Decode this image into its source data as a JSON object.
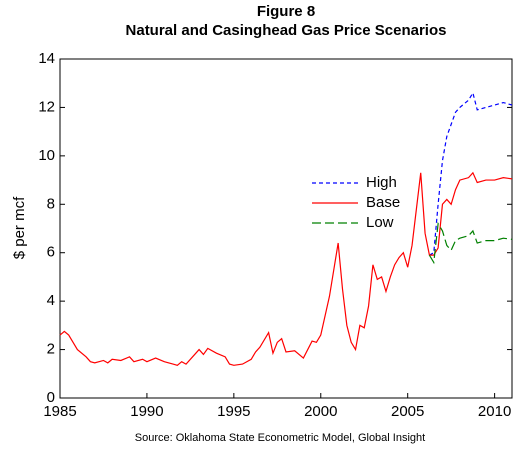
{
  "chart_data": {
    "type": "line",
    "title": "Figure 8",
    "subtitle": "Natural and Casinghead Gas Price Scenarios",
    "y_label": "$ per mcf",
    "note": "Source:  Oklahoma State Econometric Model, Global Insight",
    "x": [
      1985,
      1985.25,
      1985.5,
      1985.75,
      1986,
      1986.5,
      1986.75,
      1987,
      1987.5,
      1987.75,
      1988,
      1988.5,
      1989,
      1989.25,
      1989.75,
      1990,
      1990.5,
      1991,
      1991.5,
      1991.75,
      1992,
      1992.25,
      1992.75,
      1993,
      1993.25,
      1993.5,
      1994,
      1994.5,
      1994.75,
      1995,
      1995.5,
      1996,
      1996.25,
      1996.5,
      1997,
      1997.25,
      1997.5,
      1997.75,
      1998,
      1998.5,
      1999,
      1999.5,
      1999.75,
      2000,
      2000.5,
      2001,
      2001.25,
      2001.5,
      2001.75,
      2002,
      2002.25,
      2002.5,
      2002.75,
      2003,
      2003.25,
      2003.5,
      2003.75,
      2004,
      2004.25,
      2004.5,
      2004.75,
      2005,
      2005.25,
      2005.5,
      2005.75,
      2006,
      2006.25,
      2006.5,
      2006.75,
      2007,
      2007.25,
      2007.5,
      2007.75,
      2008,
      2008.5,
      2008.75,
      2009,
      2009.5,
      2010,
      2010.5,
      2011
    ],
    "series": [
      {
        "name": "High",
        "color": "#0000ff",
        "dash": "4 3",
        "values": [
          null,
          null,
          null,
          null,
          null,
          null,
          null,
          null,
          null,
          null,
          null,
          null,
          null,
          null,
          null,
          null,
          null,
          null,
          null,
          null,
          null,
          null,
          null,
          null,
          null,
          null,
          null,
          null,
          null,
          null,
          null,
          null,
          null,
          null,
          null,
          null,
          null,
          null,
          null,
          null,
          null,
          null,
          null,
          null,
          null,
          null,
          null,
          null,
          null,
          null,
          null,
          null,
          null,
          null,
          null,
          null,
          null,
          null,
          null,
          null,
          null,
          null,
          null,
          null,
          null,
          null,
          5.9,
          6.0,
          8.0,
          9.8,
          10.8,
          11.3,
          11.8,
          12.0,
          12.3,
          12.6,
          11.9,
          12.0,
          12.1,
          12.2,
          12.1
        ]
      },
      {
        "name": "Base",
        "color": "#ff0000",
        "dash": "none",
        "values": [
          2.6,
          2.75,
          2.6,
          2.3,
          2.0,
          1.7,
          1.5,
          1.45,
          1.55,
          1.45,
          1.6,
          1.55,
          1.7,
          1.5,
          1.6,
          1.5,
          1.65,
          1.5,
          1.4,
          1.35,
          1.5,
          1.4,
          1.8,
          2.0,
          1.8,
          2.05,
          1.85,
          1.7,
          1.4,
          1.35,
          1.4,
          1.6,
          1.9,
          2.1,
          2.7,
          1.85,
          2.3,
          2.45,
          1.9,
          1.95,
          1.65,
          2.35,
          2.3,
          2.6,
          4.2,
          6.4,
          4.5,
          3.0,
          2.3,
          2.0,
          3.0,
          2.9,
          3.8,
          5.5,
          4.9,
          5.0,
          4.4,
          5.0,
          5.5,
          5.8,
          6.0,
          5.4,
          6.3,
          7.8,
          9.3,
          6.8,
          5.9,
          5.9,
          6.2,
          8.0,
          8.2,
          8.0,
          8.6,
          9.0,
          9.1,
          9.3,
          8.9,
          9.0,
          9.0,
          9.1,
          9.05
        ]
      },
      {
        "name": "Low",
        "color": "#008000",
        "dash": "9 4",
        "values": [
          null,
          null,
          null,
          null,
          null,
          null,
          null,
          null,
          null,
          null,
          null,
          null,
          null,
          null,
          null,
          null,
          null,
          null,
          null,
          null,
          null,
          null,
          null,
          null,
          null,
          null,
          null,
          null,
          null,
          null,
          null,
          null,
          null,
          null,
          null,
          null,
          null,
          null,
          null,
          null,
          null,
          null,
          null,
          null,
          null,
          null,
          null,
          null,
          null,
          null,
          null,
          null,
          null,
          null,
          null,
          null,
          null,
          null,
          null,
          null,
          null,
          null,
          null,
          null,
          null,
          null,
          5.9,
          5.6,
          7.2,
          6.9,
          6.3,
          6.1,
          6.5,
          6.6,
          6.7,
          6.9,
          6.4,
          6.5,
          6.5,
          6.6,
          6.55
        ]
      }
    ],
    "xlim": [
      1985,
      2011
    ],
    "xticks": [
      1985,
      1990,
      1995,
      2000,
      2005,
      2010
    ],
    "ylim": [
      0,
      14
    ],
    "yticks": [
      0,
      2,
      4,
      6,
      8,
      10,
      12,
      14
    ],
    "grid": false
  }
}
